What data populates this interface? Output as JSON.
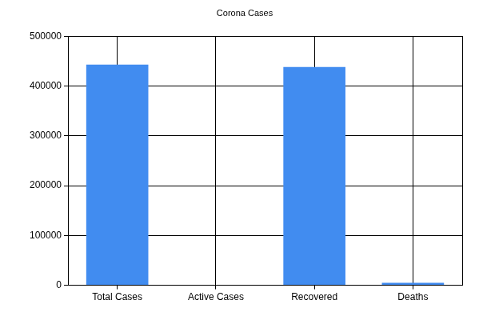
{
  "chart_data": {
    "type": "bar",
    "title": "Corona Cases",
    "categories": [
      "Total Cases",
      "Active Cases",
      "Recovered",
      "Deaths"
    ],
    "values": [
      443000,
      0,
      438000,
      5000
    ],
    "color": "#418cf0",
    "ylim": [
      0,
      500000
    ],
    "yticks": [
      0,
      100000,
      200000,
      300000,
      400000,
      500000
    ],
    "grid": true
  }
}
